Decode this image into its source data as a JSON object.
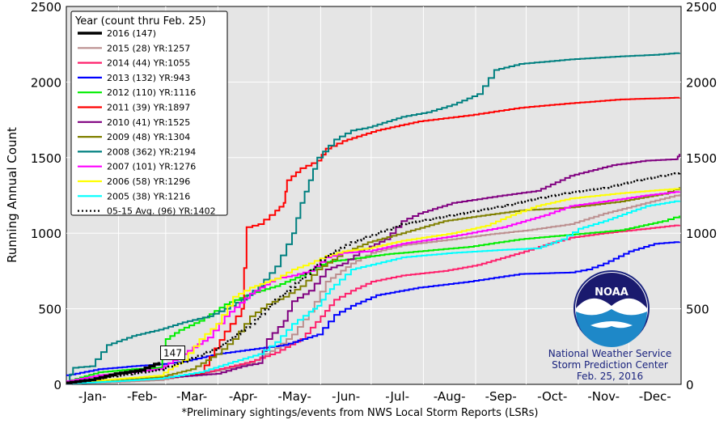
{
  "chart_data": {
    "type": "line",
    "ylabel": "Running Annual Count",
    "footnote": "*Preliminary sightings/events from NWS Local Storm Reports (LSRs)",
    "ylim": [
      0,
      2500
    ],
    "yticks": [
      0,
      500,
      1000,
      1500,
      2000,
      2500
    ],
    "xlim": [
      1,
      366
    ],
    "x_unit": "day of year",
    "month_ticks": [
      "-Jan-",
      "-Feb-",
      "-Mar-",
      "-Apr-",
      "-May-",
      "-Jun-",
      "-Jul-",
      "-Aug-",
      "-Sep-",
      "-Oct-",
      "-Nov-",
      "-Dec-"
    ],
    "grid": true,
    "legend": {
      "title": "Year (count thru Feb. 25)",
      "position": "top-left"
    },
    "current_marker": {
      "label": "147",
      "x": 56,
      "y": 147
    },
    "series": [
      {
        "name": "2016 (147)",
        "color": "#000000",
        "points": [
          [
            1,
            10
          ],
          [
            15,
            30
          ],
          [
            30,
            70
          ],
          [
            45,
            95
          ],
          [
            56,
            147
          ]
        ]
      },
      {
        "name": "2015 (28) YR:1257",
        "color": "#bc8f8f",
        "points": [
          [
            1,
            5
          ],
          [
            30,
            15
          ],
          [
            56,
            28
          ],
          [
            90,
            90
          ],
          [
            110,
            140
          ],
          [
            125,
            240
          ],
          [
            135,
            330
          ],
          [
            145,
            480
          ],
          [
            155,
            680
          ],
          [
            170,
            800
          ],
          [
            182,
            870
          ],
          [
            200,
            920
          ],
          [
            230,
            960
          ],
          [
            250,
            990
          ],
          [
            275,
            1020
          ],
          [
            300,
            1060
          ],
          [
            320,
            1130
          ],
          [
            345,
            1200
          ],
          [
            365,
            1257
          ]
        ]
      },
      {
        "name": "2014 (44) YR:1055",
        "color": "#ff1f6b",
        "points": [
          [
            1,
            5
          ],
          [
            30,
            25
          ],
          [
            56,
            44
          ],
          [
            80,
            70
          ],
          [
            110,
            150
          ],
          [
            125,
            210
          ],
          [
            140,
            300
          ],
          [
            152,
            450
          ],
          [
            160,
            560
          ],
          [
            170,
            620
          ],
          [
            182,
            680
          ],
          [
            200,
            720
          ],
          [
            225,
            750
          ],
          [
            245,
            790
          ],
          [
            270,
            870
          ],
          [
            290,
            940
          ],
          [
            300,
            970
          ],
          [
            320,
            1000
          ],
          [
            345,
            1030
          ],
          [
            365,
            1055
          ]
        ]
      },
      {
        "name": "2013 (132) YR:943",
        "color": "#0000ff",
        "points": [
          [
            1,
            60
          ],
          [
            20,
            100
          ],
          [
            40,
            120
          ],
          [
            56,
            132
          ],
          [
            70,
            150
          ],
          [
            90,
            200
          ],
          [
            110,
            230
          ],
          [
            130,
            260
          ],
          [
            150,
            330
          ],
          [
            160,
            460
          ],
          [
            170,
            520
          ],
          [
            185,
            590
          ],
          [
            210,
            640
          ],
          [
            240,
            680
          ],
          [
            270,
            730
          ],
          [
            300,
            740
          ],
          [
            310,
            760
          ],
          [
            320,
            800
          ],
          [
            335,
            880
          ],
          [
            350,
            930
          ],
          [
            365,
            943
          ]
        ]
      },
      {
        "name": "2012 (110) YR:1116",
        "color": "#00ee00",
        "points": [
          [
            1,
            20
          ],
          [
            20,
            80
          ],
          [
            40,
            100
          ],
          [
            56,
            110
          ],
          [
            60,
            300
          ],
          [
            68,
            360
          ],
          [
            80,
            420
          ],
          [
            95,
            530
          ],
          [
            110,
            600
          ],
          [
            125,
            650
          ],
          [
            140,
            720
          ],
          [
            155,
            810
          ],
          [
            170,
            830
          ],
          [
            190,
            860
          ],
          [
            210,
            880
          ],
          [
            240,
            910
          ],
          [
            270,
            960
          ],
          [
            300,
            990
          ],
          [
            330,
            1020
          ],
          [
            355,
            1080
          ],
          [
            365,
            1116
          ]
        ]
      },
      {
        "name": "2011 (39) YR:1897",
        "color": "#ff0000",
        "points": [
          [
            1,
            10
          ],
          [
            30,
            25
          ],
          [
            56,
            39
          ],
          [
            80,
            70
          ],
          [
            95,
            350
          ],
          [
            105,
            500
          ],
          [
            108,
            1040
          ],
          [
            115,
            1060
          ],
          [
            125,
            1150
          ],
          [
            130,
            1200
          ],
          [
            132,
            1350
          ],
          [
            140,
            1430
          ],
          [
            150,
            1480
          ],
          [
            155,
            1560
          ],
          [
            165,
            1610
          ],
          [
            185,
            1680
          ],
          [
            210,
            1740
          ],
          [
            240,
            1780
          ],
          [
            270,
            1830
          ],
          [
            300,
            1860
          ],
          [
            330,
            1885
          ],
          [
            365,
            1897
          ]
        ]
      },
      {
        "name": "2010 (41) YR:1525",
        "color": "#800080",
        "points": [
          [
            1,
            5
          ],
          [
            30,
            20
          ],
          [
            56,
            41
          ],
          [
            90,
            70
          ],
          [
            105,
            120
          ],
          [
            115,
            140
          ],
          [
            120,
            300
          ],
          [
            130,
            420
          ],
          [
            135,
            550
          ],
          [
            145,
            620
          ],
          [
            155,
            760
          ],
          [
            165,
            800
          ],
          [
            175,
            880
          ],
          [
            190,
            960
          ],
          [
            200,
            1080
          ],
          [
            210,
            1130
          ],
          [
            230,
            1200
          ],
          [
            260,
            1250
          ],
          [
            280,
            1280
          ],
          [
            300,
            1380
          ],
          [
            325,
            1450
          ],
          [
            345,
            1480
          ],
          [
            363,
            1490
          ],
          [
            365,
            1525
          ]
        ]
      },
      {
        "name": "2009 (48) YR:1304",
        "color": "#808000",
        "points": [
          [
            1,
            10
          ],
          [
            30,
            30
          ],
          [
            56,
            48
          ],
          [
            75,
            100
          ],
          [
            90,
            200
          ],
          [
            100,
            300
          ],
          [
            110,
            450
          ],
          [
            120,
            530
          ],
          [
            130,
            580
          ],
          [
            140,
            650
          ],
          [
            150,
            760
          ],
          [
            165,
            870
          ],
          [
            180,
            940
          ],
          [
            200,
            1000
          ],
          [
            225,
            1080
          ],
          [
            250,
            1120
          ],
          [
            270,
            1150
          ],
          [
            300,
            1170
          ],
          [
            330,
            1210
          ],
          [
            355,
            1260
          ],
          [
            365,
            1304
          ]
        ]
      },
      {
        "name": "2008 (362) YR:2194",
        "color": "#008080",
        "points": [
          [
            1,
            20
          ],
          [
            5,
            110
          ],
          [
            15,
            120
          ],
          [
            25,
            260
          ],
          [
            40,
            320
          ],
          [
            56,
            362
          ],
          [
            70,
            410
          ],
          [
            85,
            450
          ],
          [
            95,
            500
          ],
          [
            105,
            560
          ],
          [
            115,
            650
          ],
          [
            125,
            780
          ],
          [
            135,
            1000
          ],
          [
            140,
            1200
          ],
          [
            145,
            1350
          ],
          [
            150,
            1500
          ],
          [
            160,
            1620
          ],
          [
            170,
            1680
          ],
          [
            180,
            1700
          ],
          [
            200,
            1770
          ],
          [
            215,
            1800
          ],
          [
            230,
            1850
          ],
          [
            245,
            1920
          ],
          [
            255,
            2080
          ],
          [
            270,
            2120
          ],
          [
            300,
            2150
          ],
          [
            330,
            2170
          ],
          [
            350,
            2180
          ],
          [
            365,
            2194
          ]
        ]
      },
      {
        "name": "2007 (101) YR:1276",
        "color": "#ff00ff",
        "points": [
          [
            1,
            20
          ],
          [
            20,
            60
          ],
          [
            40,
            80
          ],
          [
            56,
            101
          ],
          [
            70,
            200
          ],
          [
            85,
            310
          ],
          [
            95,
            450
          ],
          [
            110,
            600
          ],
          [
            125,
            700
          ],
          [
            135,
            720
          ],
          [
            145,
            750
          ],
          [
            155,
            840
          ],
          [
            165,
            870
          ],
          [
            180,
            880
          ],
          [
            200,
            930
          ],
          [
            230,
            980
          ],
          [
            260,
            1040
          ],
          [
            285,
            1120
          ],
          [
            300,
            1180
          ],
          [
            320,
            1210
          ],
          [
            345,
            1250
          ],
          [
            365,
            1276
          ]
        ]
      },
      {
        "name": "2006 (58) YR:1296",
        "color": "#ffff00",
        "points": [
          [
            1,
            10
          ],
          [
            30,
            35
          ],
          [
            56,
            58
          ],
          [
            70,
            160
          ],
          [
            80,
            300
          ],
          [
            90,
            400
          ],
          [
            100,
            580
          ],
          [
            110,
            640
          ],
          [
            125,
            700
          ],
          [
            135,
            760
          ],
          [
            145,
            800
          ],
          [
            155,
            850
          ],
          [
            165,
            880
          ],
          [
            180,
            900
          ],
          [
            200,
            950
          ],
          [
            230,
            1000
          ],
          [
            250,
            1050
          ],
          [
            265,
            1120
          ],
          [
            280,
            1180
          ],
          [
            300,
            1230
          ],
          [
            330,
            1265
          ],
          [
            365,
            1296
          ]
        ]
      },
      {
        "name": "2005 (38) YR:1216",
        "color": "#00ffff",
        "points": [
          [
            1,
            5
          ],
          [
            30,
            20
          ],
          [
            56,
            38
          ],
          [
            80,
            80
          ],
          [
            100,
            150
          ],
          [
            115,
            200
          ],
          [
            125,
            280
          ],
          [
            135,
            400
          ],
          [
            145,
            480
          ],
          [
            150,
            520
          ],
          [
            155,
            600
          ],
          [
            160,
            660
          ],
          [
            170,
            760
          ],
          [
            185,
            800
          ],
          [
            200,
            840
          ],
          [
            230,
            870
          ],
          [
            260,
            890
          ],
          [
            280,
            900
          ],
          [
            295,
            960
          ],
          [
            305,
            1030
          ],
          [
            320,
            1080
          ],
          [
            345,
            1180
          ],
          [
            365,
            1216
          ]
        ]
      },
      {
        "name": "05-15 Avg. (96) YR:1402",
        "color": "#000000",
        "dashed": true,
        "points": [
          [
            1,
            10
          ],
          [
            20,
            40
          ],
          [
            40,
            70
          ],
          [
            56,
            96
          ],
          [
            70,
            150
          ],
          [
            90,
            240
          ],
          [
            110,
            400
          ],
          [
            125,
            560
          ],
          [
            140,
            700
          ],
          [
            155,
            850
          ],
          [
            170,
            940
          ],
          [
            185,
            1000
          ],
          [
            200,
            1060
          ],
          [
            220,
            1100
          ],
          [
            240,
            1140
          ],
          [
            260,
            1180
          ],
          [
            280,
            1230
          ],
          [
            300,
            1270
          ],
          [
            320,
            1300
          ],
          [
            340,
            1350
          ],
          [
            365,
            1402
          ]
        ]
      }
    ]
  },
  "branding": {
    "logo_text": "NOAA",
    "line1": "National Weather Service",
    "line2": "Storm Prediction Center",
    "line3": "Feb. 25, 2016"
  }
}
